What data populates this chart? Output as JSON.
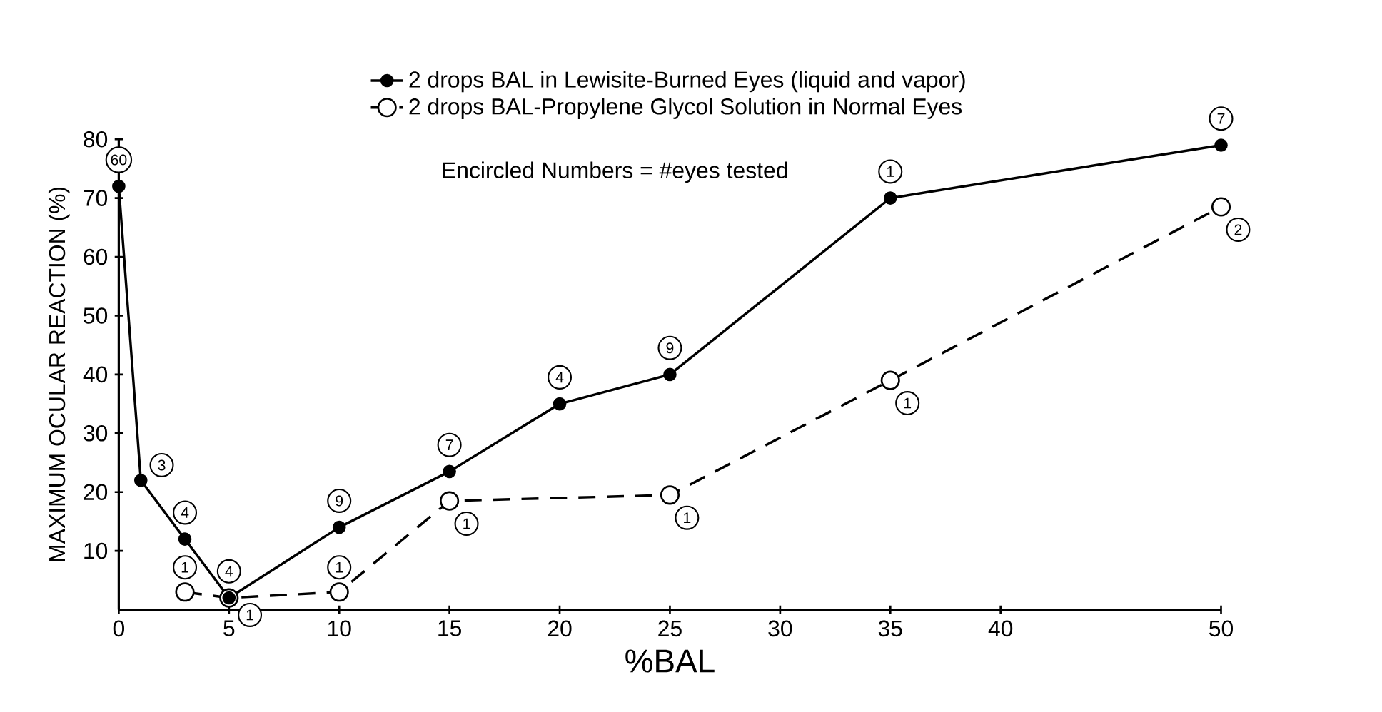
{
  "chart_data": {
    "type": "line",
    "xlabel": "%BAL",
    "ylabel": "MAXIMUM OCULAR REACTION (%)",
    "xlim": [
      0,
      50
    ],
    "ylim": [
      0,
      80
    ],
    "xticks": [
      0,
      5,
      10,
      15,
      20,
      25,
      30,
      35,
      40,
      50
    ],
    "yticks": [
      10,
      20,
      30,
      40,
      50,
      60,
      70,
      80
    ],
    "legend": "top",
    "grid": false,
    "series": [
      {
        "name": "2 drops BAL in Lewisite-Burned Eyes (liquid and vapor)",
        "color": "#000000",
        "marker": "circle",
        "line_style": "solid",
        "x": [
          0,
          1,
          3,
          5,
          10,
          15,
          20,
          25,
          35,
          50
        ],
        "values": [
          72,
          22,
          12,
          2,
          14,
          23.5,
          35,
          40,
          70,
          79
        ]
      },
      {
        "name": "2 drops BAL-Propylene Glycol Solution in Normal Eyes",
        "color": "#000000",
        "marker": "circle",
        "line_style": "dashed",
        "x": [
          3,
          5,
          10,
          15,
          25,
          35,
          50
        ],
        "values": [
          3,
          2,
          3,
          18.5,
          19.5,
          39,
          68.5
        ]
      }
    ],
    "annotations": [
      "Encircled Numbers = #eyes tested",
      {
        "text": "60",
        "x": 0,
        "y": 72
      },
      {
        "text": "3",
        "x": 1,
        "y": 22
      },
      {
        "text": "4",
        "x": 3,
        "y": 12
      },
      {
        "text": "4",
        "x": 5,
        "y": 2
      },
      {
        "text": "9",
        "x": 10,
        "y": 14
      },
      {
        "text": "7",
        "x": 15,
        "y": 23.5
      },
      {
        "text": "4",
        "x": 20,
        "y": 35
      },
      {
        "text": "9",
        "x": 25,
        "y": 40
      },
      {
        "text": "1",
        "x": 35,
        "y": 70
      },
      {
        "text": "7",
        "x": 50,
        "y": 79
      },
      {
        "text": "1",
        "x": 3,
        "y": 3
      },
      {
        "text": "1",
        "x": 5,
        "y": 2
      },
      {
        "text": "1",
        "x": 10,
        "y": 3
      },
      {
        "text": "1",
        "x": 15,
        "y": 18.5
      },
      {
        "text": "1",
        "x": 25,
        "y": 19.5
      },
      {
        "text": "1",
        "x": 35,
        "y": 39
      },
      {
        "text": "2",
        "x": 50,
        "y": 68.5
      }
    ]
  }
}
